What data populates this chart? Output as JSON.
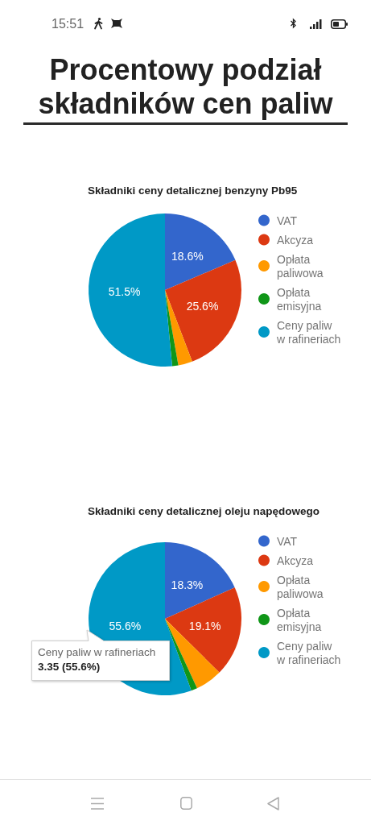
{
  "chart_data": [
    {
      "type": "pie",
      "title": "Procentowy podział składników cen paliw",
      "subtitle": "Składniki ceny detalicznej benzyny Pb95",
      "categories": [
        "VAT",
        "Akcyza",
        "Opłata paliwowa",
        "Opłata emisyjna",
        "Ceny paliw w rafineriach"
      ],
      "values": [
        18.6,
        25.6,
        3.0,
        1.3,
        51.5
      ],
      "colors": [
        "#3366cc",
        "#dc3912",
        "#ff9900",
        "#109618",
        "#0099c6"
      ],
      "value_labels": [
        "18.6%",
        "25.6%",
        null,
        null,
        "51.5%"
      ],
      "legend": "right",
      "annotations": [
        "15:51"
      ]
    },
    {
      "type": "pie",
      "title": "Składniki ceny detalicznej oleju napędowego",
      "categories": [
        "VAT",
        "Akcyza",
        "Opłata paliwowa",
        "Opłata emisyjna",
        "Ceny paliw w rafineriach"
      ],
      "values": [
        18.3,
        19.1,
        5.7,
        1.3,
        55.6
      ],
      "colors": [
        "#3366cc",
        "#dc3912",
        "#ff9900",
        "#109618",
        "#0099c6"
      ],
      "value_labels": [
        "18.3%",
        "19.1%",
        null,
        null,
        "55.6%"
      ],
      "legend": "right",
      "annotations": [
        "Ceny paliw w rafineriach",
        "3.35 (55.6%)"
      ]
    }
  ]
}
